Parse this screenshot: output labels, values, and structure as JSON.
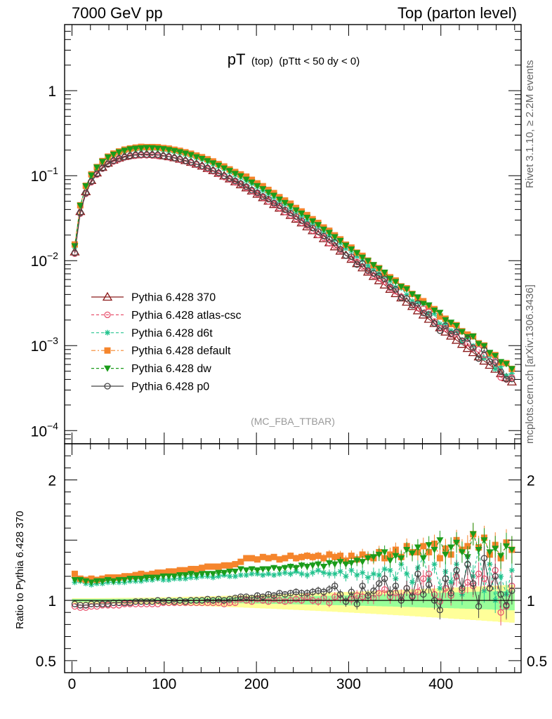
{
  "header": {
    "left": "7000 GeV pp",
    "right": "Top (parton level)"
  },
  "side_labels": {
    "rivet": "Rivet 3.1.10, ≥ 2.2M events",
    "mcplots": "mcplots.cern.ch [arXiv:1306.3436]"
  },
  "plot_title": {
    "main": "pT",
    "sub1": "(top)",
    "sub2": "(pTtt < 50 dy < 0)"
  },
  "watermark": "(MC_FBA_TTBAR)",
  "ratio_ylabel": "Ratio to Pythia 6.428 370",
  "chart_data": {
    "type": "line",
    "x": [
      3,
      9,
      15,
      21,
      27,
      33,
      39,
      45,
      51,
      57,
      63,
      69,
      75,
      81,
      87,
      93,
      99,
      105,
      111,
      117,
      123,
      129,
      135,
      141,
      147,
      153,
      159,
      165,
      171,
      177,
      183,
      189,
      195,
      201,
      207,
      213,
      219,
      225,
      231,
      237,
      243,
      249,
      255,
      261,
      267,
      273,
      279,
      285,
      291,
      297,
      303,
      309,
      315,
      321,
      327,
      333,
      339,
      345,
      351,
      357,
      363,
      369,
      375,
      381,
      387,
      393,
      399,
      405,
      411,
      417,
      423,
      429,
      435,
      441,
      447,
      453,
      459,
      465,
      471,
      477
    ],
    "xlim": [
      -8,
      487
    ],
    "main_panel": {
      "yscale": "log",
      "ylim": [
        7e-05,
        6
      ],
      "yticks": [
        "10^-4",
        "10^-3",
        "10^-2",
        "10^-1",
        "1"
      ]
    },
    "ratio_panel": {
      "ylim": [
        0.4,
        2.3
      ],
      "yticks": [
        "0.5",
        "1",
        "2"
      ],
      "ylabel": "Ratio to Pythia 6.428 370"
    },
    "xticks": [
      "0",
      "100",
      "200",
      "300",
      "400"
    ],
    "series": [
      {
        "name": "Pythia 6.428 370",
        "color": "#8b1a1a",
        "marker": "open-triangle",
        "line": "solid",
        "ratio": [
          1,
          1,
          1,
          1,
          1,
          1,
          1,
          1,
          1,
          1,
          1,
          1,
          1,
          1,
          1,
          1,
          1,
          1,
          1,
          1,
          1,
          1,
          1,
          1,
          1,
          1,
          1,
          1,
          1,
          1,
          1,
          1,
          1,
          1,
          1,
          1,
          1,
          1,
          1,
          1,
          1,
          1,
          1,
          1,
          1,
          1,
          1,
          1,
          1,
          1,
          1,
          1,
          1,
          1,
          1,
          1,
          1,
          1,
          1,
          1,
          1,
          1,
          1,
          1,
          1,
          1,
          1,
          1,
          1,
          1,
          1,
          1,
          1,
          1,
          1,
          1,
          1,
          1,
          1,
          1
        ]
      },
      {
        "name": "Pythia 6.428 atlas-csc",
        "color": "#e8536f",
        "marker": "open-circle",
        "line": "dashed",
        "ratio": [
          0.95,
          0.94,
          0.94,
          0.95,
          0.95,
          0.96,
          0.96,
          0.96,
          0.96,
          0.97,
          0.97,
          0.97,
          0.97,
          0.97,
          0.97,
          0.97,
          0.98,
          0.98,
          0.98,
          0.98,
          0.98,
          0.98,
          0.98,
          0.98,
          0.98,
          0.98,
          0.98,
          0.97,
          0.98,
          0.98,
          1.01,
          1.0,
          0.99,
          1.01,
          1.0,
          0.99,
          1.01,
          1.0,
          0.99,
          1.0,
          1.01,
          1.0,
          1.03,
          1.0,
          0.99,
          1.02,
          0.98,
          1.03,
          1.02,
          0.99,
          1.01,
          1.04,
          1.03,
          1.02,
          1.02,
          1.06,
          1.09,
          1.03,
          1.06,
          1.03,
          1.1,
          1.04,
          1.07,
          1.18,
          1.22,
          1.05,
          0.99,
          1.1,
          1.04,
          1.2,
          1.08,
          1.15,
          1.12,
          1.22,
          1.18,
          1.1,
          1.25,
          0.9,
          0.95,
          1.12
        ]
      },
      {
        "name": "Pythia 6.428 d6t",
        "color": "#22c38e",
        "marker": "star",
        "line": "dashed",
        "ratio": [
          1.15,
          1.16,
          1.14,
          1.13,
          1.14,
          1.14,
          1.15,
          1.15,
          1.15,
          1.15,
          1.16,
          1.16,
          1.16,
          1.17,
          1.17,
          1.18,
          1.17,
          1.17,
          1.18,
          1.18,
          1.18,
          1.19,
          1.19,
          1.2,
          1.2,
          1.19,
          1.2,
          1.21,
          1.2,
          1.2,
          1.21,
          1.21,
          1.22,
          1.22,
          1.21,
          1.22,
          1.21,
          1.22,
          1.23,
          1.22,
          1.24,
          1.22,
          1.21,
          1.23,
          1.25,
          1.23,
          1.22,
          1.22,
          1.24,
          1.2,
          1.25,
          1.21,
          1.23,
          1.19,
          1.22,
          1.21,
          1.26,
          1.25,
          1.18,
          1.3,
          1.22,
          1.15,
          1.27,
          1.36,
          1.17,
          1.3,
          1.1,
          1.24,
          1.15,
          1.3,
          1.05,
          1.36,
          1.2,
          1.43,
          1.08,
          1.3,
          1.0,
          1.2,
          1.05,
          1.25
        ]
      },
      {
        "name": "Pythia 6.428 default",
        "color": "#f5852c",
        "marker": "filled-square",
        "line": "dashdot",
        "ratio": [
          1.22,
          1.18,
          1.17,
          1.18,
          1.17,
          1.18,
          1.19,
          1.19,
          1.19,
          1.2,
          1.2,
          1.21,
          1.22,
          1.21,
          1.22,
          1.23,
          1.23,
          1.24,
          1.24,
          1.25,
          1.25,
          1.26,
          1.26,
          1.27,
          1.28,
          1.28,
          1.28,
          1.29,
          1.29,
          1.3,
          1.32,
          1.35,
          1.35,
          1.34,
          1.36,
          1.35,
          1.36,
          1.34,
          1.35,
          1.37,
          1.35,
          1.36,
          1.37,
          1.36,
          1.37,
          1.35,
          1.38,
          1.36,
          1.37,
          1.33,
          1.37,
          1.34,
          1.38,
          1.36,
          1.35,
          1.4,
          1.35,
          1.38,
          1.42,
          1.36,
          1.45,
          1.4,
          1.4,
          1.45,
          1.4,
          1.47,
          1.35,
          1.43,
          1.38,
          1.5,
          1.42,
          1.45,
          1.55,
          1.44,
          1.52,
          1.38,
          1.46,
          1.35,
          1.48,
          1.42
        ]
      },
      {
        "name": "Pythia 6.428 dw",
        "color": "#1a9c1a",
        "marker": "filled-triangle-down",
        "line": "dashed",
        "ratio": [
          1.17,
          1.17,
          1.16,
          1.15,
          1.16,
          1.16,
          1.17,
          1.16,
          1.17,
          1.17,
          1.18,
          1.18,
          1.18,
          1.19,
          1.19,
          1.19,
          1.2,
          1.2,
          1.2,
          1.21,
          1.21,
          1.22,
          1.21,
          1.22,
          1.22,
          1.22,
          1.23,
          1.23,
          1.24,
          1.24,
          1.26,
          1.25,
          1.26,
          1.25,
          1.26,
          1.26,
          1.27,
          1.26,
          1.27,
          1.28,
          1.27,
          1.29,
          1.28,
          1.29,
          1.3,
          1.28,
          1.31,
          1.3,
          1.32,
          1.3,
          1.31,
          1.33,
          1.32,
          1.35,
          1.36,
          1.38,
          1.4,
          1.33,
          1.37,
          1.35,
          1.42,
          1.39,
          1.44,
          1.35,
          1.46,
          1.42,
          1.5,
          1.38,
          1.44,
          1.48,
          1.4,
          1.36,
          1.55,
          1.42,
          1.5,
          1.4,
          1.43,
          1.37,
          1.45,
          1.42
        ]
      },
      {
        "name": "Pythia 6.428 p0",
        "color": "#444444",
        "marker": "open-circle",
        "line": "solid",
        "ratio": [
          0.97,
          0.96,
          0.96,
          0.97,
          0.97,
          0.97,
          0.97,
          0.98,
          0.98,
          0.98,
          0.98,
          0.99,
          0.99,
          0.99,
          0.99,
          1.0,
          0.99,
          1.0,
          0.99,
          1.0,
          0.99,
          1.0,
          1.0,
          1.0,
          1.01,
          1.0,
          1.01,
          1.0,
          1.01,
          1.02,
          1.03,
          1.03,
          1.02,
          1.04,
          1.03,
          1.05,
          1.04,
          1.06,
          1.05,
          1.06,
          1.07,
          1.06,
          1.06,
          1.07,
          1.08,
          1.07,
          1.09,
          1.12,
          1.05,
          0.99,
          1.07,
          0.97,
          1.12,
          1.04,
          1.08,
          1.14,
          1.18,
          1.06,
          1.12,
          1.0,
          1.1,
          1.03,
          1.22,
          1.05,
          1.13,
          1.0,
          0.92,
          1.18,
          1.06,
          1.25,
          1.1,
          1.3,
          1.14,
          0.95,
          1.35,
          1.1,
          1.2,
          1.05,
          0.96,
          1.08
        ]
      }
    ],
    "reference_yields": [
      0.0127,
      0.038,
      0.065,
      0.088,
      0.108,
      0.126,
      0.141,
      0.153,
      0.162,
      0.169,
      0.174,
      0.177,
      0.179,
      0.179,
      0.178,
      0.176,
      0.172,
      0.168,
      0.163,
      0.157,
      0.151,
      0.144,
      0.137,
      0.13,
      0.122,
      0.115,
      0.107,
      0.0995,
      0.092,
      0.085,
      0.0785,
      0.0722,
      0.0662,
      0.0606,
      0.0553,
      0.0504,
      0.0459,
      0.0417,
      0.0378,
      0.0342,
      0.0309,
      0.0279,
      0.0251,
      0.0226,
      0.0203,
      0.0182,
      0.0163,
      0.0146,
      0.013,
      0.0116,
      0.0104,
      0.00927,
      0.00826,
      0.00736,
      0.00655,
      0.00583,
      0.00519,
      0.00462,
      0.00411,
      0.00366,
      0.00326,
      0.0029,
      0.00258,
      0.0023,
      0.00205,
      0.00183,
      0.00163,
      0.00145,
      0.0013,
      0.00116,
      0.00104,
      0.00093,
      0.00083,
      0.00074,
      0.00066,
      0.00059,
      0.00053,
      0.00047,
      0.00042,
      0.000375
    ],
    "legend_position": "center-left"
  }
}
